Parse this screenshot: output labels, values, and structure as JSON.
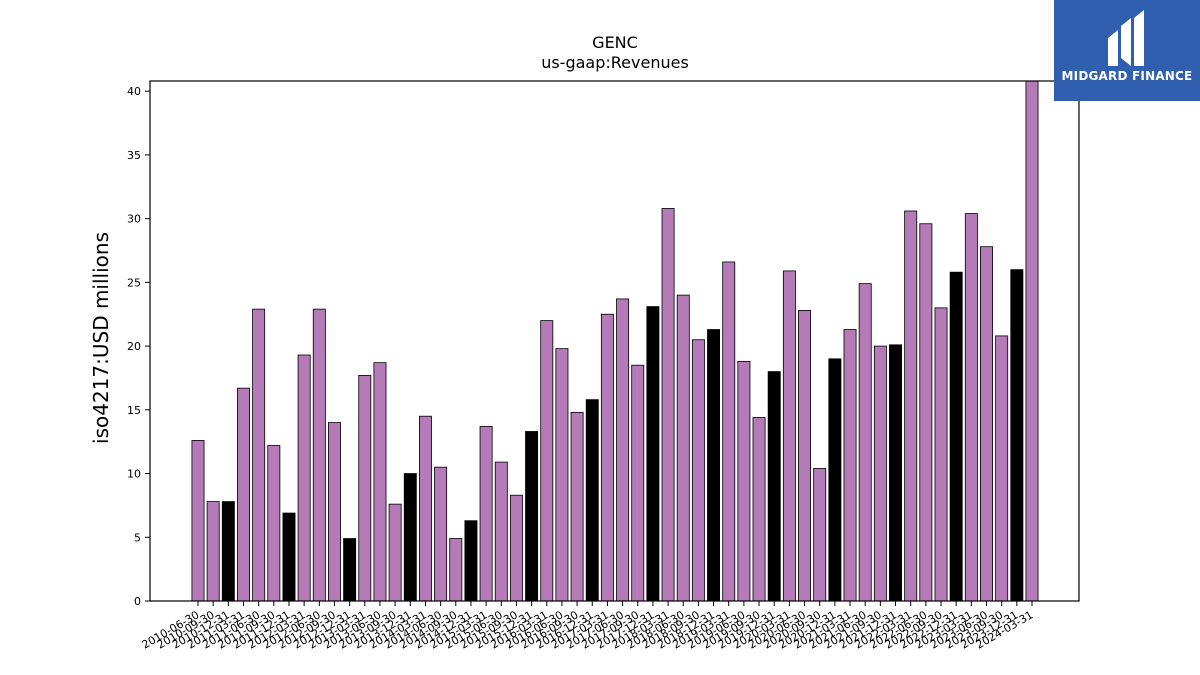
{
  "brand": {
    "name": "MIDGARD FINANCE",
    "logo_icon": "midgard-finance-logo-icon",
    "logo_color": "#2f5fae"
  },
  "chart_data": {
    "type": "bar",
    "title": "GENC",
    "subtitle": "us-gaap:Revenues",
    "ylabel": "iso4217:USD  millions",
    "xlabel": "",
    "ylim": [
      0,
      40.8
    ],
    "yticks": [
      0,
      5,
      10,
      15,
      20,
      25,
      30,
      35,
      40
    ],
    "colors": {
      "default": "#b57ab8",
      "highlight": "#000000"
    },
    "grid": false,
    "categories": [
      "2010-06-30",
      "2010-09-30",
      "2010-12-31",
      "2011-03-31",
      "2011-06-30",
      "2011-09-30",
      "2011-12-31",
      "2012-03-31",
      "2012-06-30",
      "2012-09-30",
      "2012-12-31",
      "2013-03-31",
      "2013-06-30",
      "2013-09-30",
      "2013-12-31",
      "2014-03-31",
      "2014-06-30",
      "2014-09-30",
      "2014-12-31",
      "2015-03-31",
      "2015-06-30",
      "2015-09-30",
      "2015-12-31",
      "2016-03-31",
      "2016-06-30",
      "2016-09-30",
      "2016-12-31",
      "2017-03-31",
      "2017-06-30",
      "2017-09-30",
      "2017-12-31",
      "2018-03-31",
      "2018-06-30",
      "2018-09-30",
      "2018-12-31",
      "2019-03-31",
      "2019-06-30",
      "2019-09-30",
      "2019-12-31",
      "2020-03-31",
      "2020-06-30",
      "2020-09-30",
      "2020-12-31",
      "2021-03-31",
      "2021-06-30",
      "2021-09-30",
      "2021-12-31",
      "2022-03-31",
      "2022-06-30",
      "2022-09-30",
      "2022-12-31",
      "2023-03-31",
      "2023-06-30",
      "2023-09-30",
      "2023-12-31",
      "2024-03-31"
    ],
    "values": [
      12.6,
      7.8,
      7.8,
      16.7,
      22.9,
      12.2,
      6.9,
      19.3,
      22.9,
      14.0,
      4.9,
      17.7,
      18.7,
      7.6,
      10.0,
      14.5,
      10.5,
      4.9,
      6.3,
      13.7,
      10.9,
      8.3,
      13.3,
      22.0,
      19.8,
      14.8,
      15.8,
      22.5,
      23.7,
      18.5,
      23.1,
      30.8,
      24.0,
      20.5,
      21.3,
      26.6,
      18.8,
      14.4,
      18.0,
      25.9,
      22.8,
      10.4,
      19.0,
      21.3,
      24.9,
      20.0,
      20.1,
      30.6,
      29.6,
      23.0,
      25.8,
      30.4,
      27.8,
      20.8,
      26.0,
      40.8
    ],
    "highlight": [
      false,
      false,
      true,
      false,
      false,
      false,
      true,
      false,
      false,
      false,
      true,
      false,
      false,
      false,
      true,
      false,
      false,
      false,
      true,
      false,
      false,
      false,
      true,
      false,
      false,
      false,
      true,
      false,
      false,
      false,
      true,
      false,
      false,
      false,
      true,
      false,
      false,
      false,
      true,
      false,
      false,
      false,
      true,
      false,
      false,
      false,
      true,
      false,
      false,
      false,
      true,
      false,
      false,
      false,
      true,
      false
    ]
  }
}
